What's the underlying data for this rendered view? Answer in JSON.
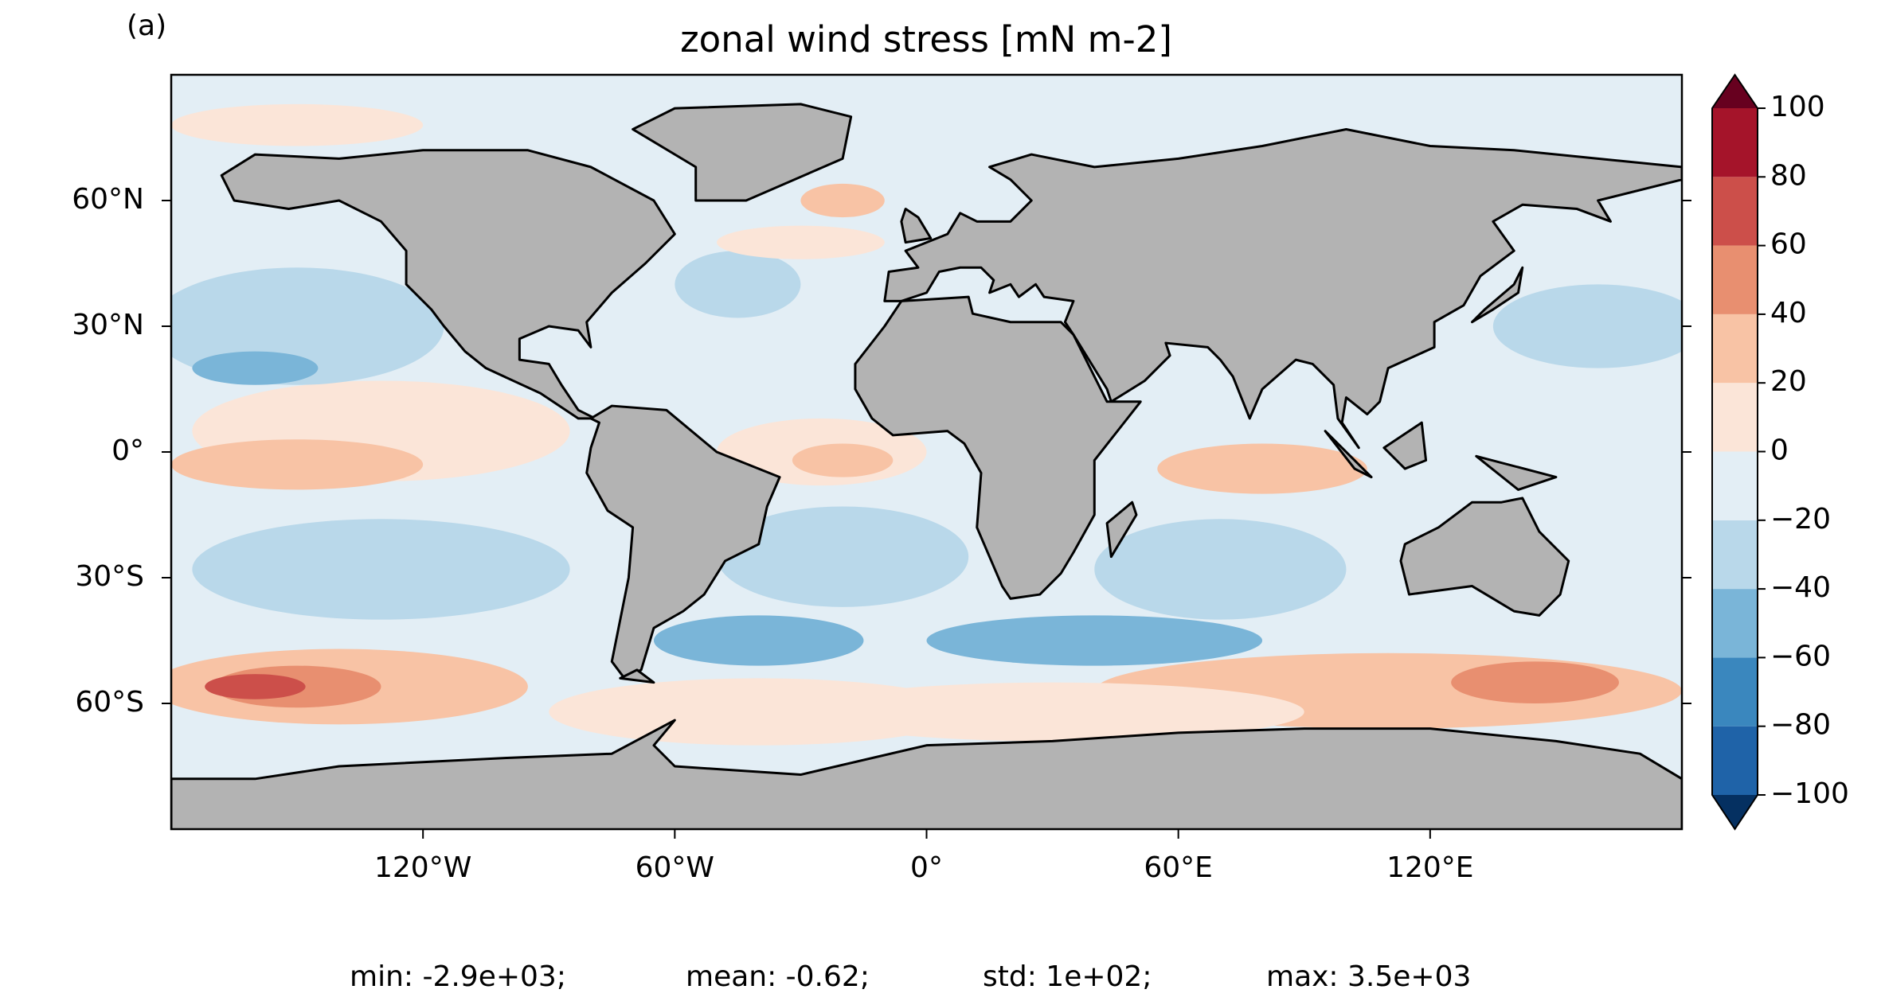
{
  "panel_label": "(a)",
  "chart_data": {
    "type": "map",
    "title": "zonal wind stress [mN m-2]",
    "xlim": [
      -180,
      180
    ],
    "ylim": [
      -90,
      90
    ],
    "xticks": [
      {
        "value": -120,
        "label": "120°W"
      },
      {
        "value": -60,
        "label": "60°W"
      },
      {
        "value": 0,
        "label": "0°"
      },
      {
        "value": 60,
        "label": "60°E"
      },
      {
        "value": 120,
        "label": "120°E"
      }
    ],
    "yticks": [
      {
        "value": 60,
        "label": "60°N"
      },
      {
        "value": 30,
        "label": "30°N"
      },
      {
        "value": 0,
        "label": "0°"
      },
      {
        "value": -30,
        "label": "30°S"
      },
      {
        "value": -60,
        "label": "60°S"
      }
    ],
    "colorbar": {
      "levels": [
        -100,
        -80,
        -60,
        -40,
        -20,
        0,
        20,
        40,
        60,
        80,
        100
      ],
      "colors": [
        "#1f63a8",
        "#3a87be",
        "#7ab5d8",
        "#b9d8ea",
        "#e3eef5",
        "#fbe5d8",
        "#f8c3a5",
        "#e88f70",
        "#cc4f4a",
        "#a5142a"
      ],
      "under": "#053061",
      "over": "#67001f",
      "ticks": [
        {
          "value": 100,
          "label": "100"
        },
        {
          "value": 80,
          "label": "80"
        },
        {
          "value": 60,
          "label": "60"
        },
        {
          "value": 40,
          "label": "40"
        },
        {
          "value": 20,
          "label": "20"
        },
        {
          "value": 0,
          "label": "0"
        },
        {
          "value": -20,
          "label": "−20"
        },
        {
          "value": -40,
          "label": "−40"
        },
        {
          "value": -60,
          "label": "−60"
        },
        {
          "value": -80,
          "label": "−80"
        },
        {
          "value": -100,
          "label": "−100"
        }
      ]
    },
    "stats": [
      "min: -2.9e+03;",
      "mean: -0.62;",
      "std: 1e+02;",
      "max: 3.5e+03"
    ]
  }
}
